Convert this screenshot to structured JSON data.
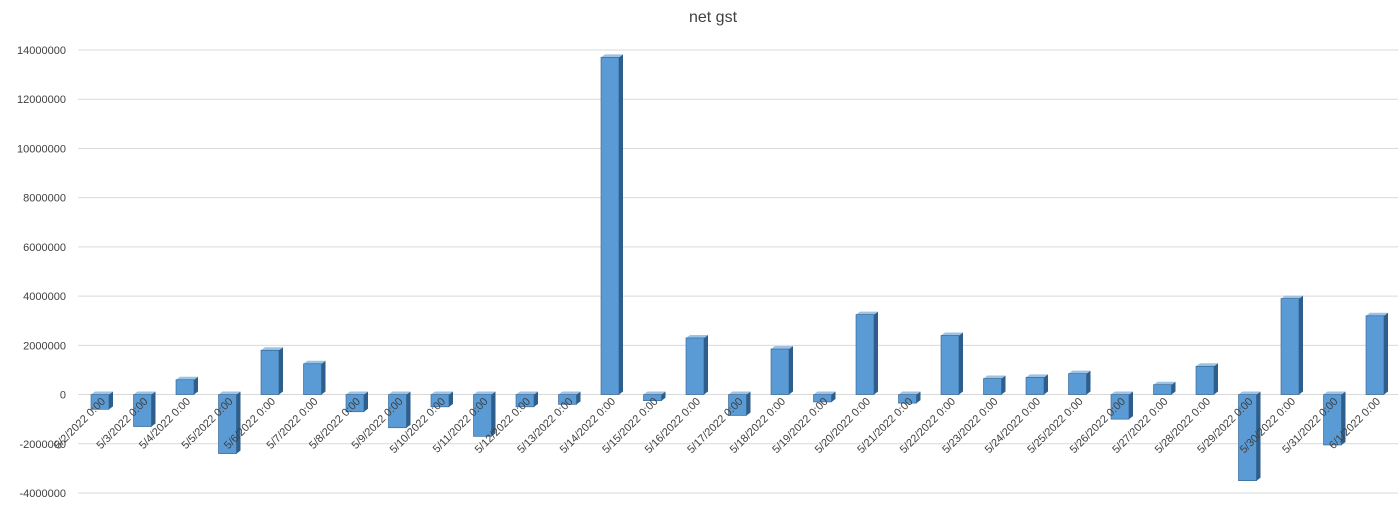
{
  "chart_data": {
    "type": "bar",
    "title": "net gst",
    "xlabel": "",
    "ylabel": "",
    "ylim": [
      -4000000,
      14000000
    ],
    "yticks": [
      -4000000,
      -2000000,
      0,
      2000000,
      4000000,
      6000000,
      8000000,
      10000000,
      12000000,
      14000000
    ],
    "ytick_labels": [
      "-4000000",
      "-2000000",
      "0",
      "2000000",
      "4000000",
      "6000000",
      "8000000",
      "10000000",
      "12000000",
      "14000000"
    ],
    "grid": true,
    "legend": "none",
    "categories": [
      "5/2/2022 0:00",
      "5/3/2022 0:00",
      "5/4/2022 0:00",
      "5/5/2022 0:00",
      "5/6/2022 0:00",
      "5/7/2022 0:00",
      "5/8/2022 0:00",
      "5/9/2022 0:00",
      "5/10/2022 0:00",
      "5/11/2022 0:00",
      "5/12/2022 0:00",
      "5/13/2022 0:00",
      "5/14/2022 0:00",
      "5/15/2022 0:00",
      "5/16/2022 0:00",
      "5/17/2022 0:00",
      "5/18/2022 0:00",
      "5/19/2022 0:00",
      "5/20/2022 0:00",
      "5/21/2022 0:00",
      "5/22/2022 0:00",
      "5/23/2022 0:00",
      "5/24/2022 0:00",
      "5/25/2022 0:00",
      "5/26/2022 0:00",
      "5/27/2022 0:00",
      "5/28/2022 0:00",
      "5/29/2022 0:00",
      "5/30/2022 0:00",
      "5/31/2022 0:00",
      "6/1/2022 0:00"
    ],
    "series": [
      {
        "values": [
          -600000,
          -1300000,
          600000,
          -2400000,
          1800000,
          1250000,
          -700000,
          -1350000,
          -500000,
          -1700000,
          -500000,
          -400000,
          13700000,
          -250000,
          2300000,
          -850000,
          1850000,
          -300000,
          3250000,
          -350000,
          2400000,
          650000,
          700000,
          850000,
          -1000000,
          400000,
          1150000,
          -3500000,
          3900000,
          -2050000,
          3200000
        ]
      }
    ],
    "colors": {
      "bar_front": "#5b9bd5",
      "bar_side": "#2e5f8c",
      "bar_top": "#9cc3e6",
      "grid": "#d9d9d9",
      "text": "#404040"
    }
  }
}
